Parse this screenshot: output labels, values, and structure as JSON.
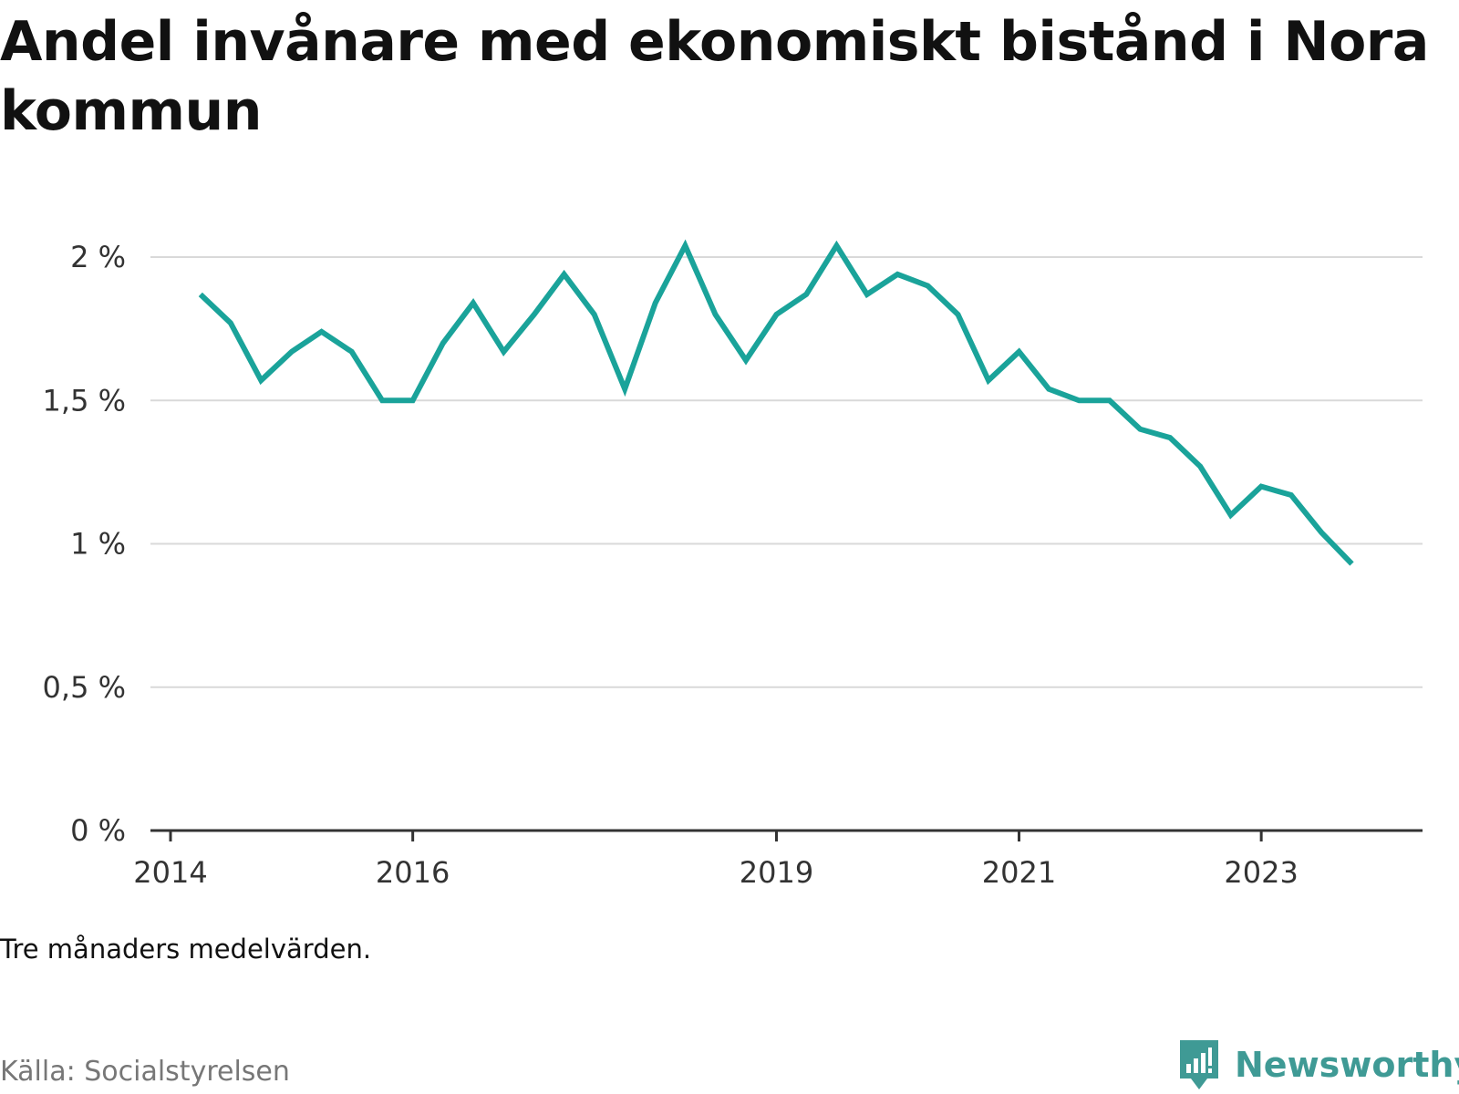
{
  "header": {
    "title": "Andel invånare med ekonomiskt bistånd i Nora kommun"
  },
  "footer": {
    "note": "Tre månaders medelvärden.",
    "source": "Källa: Socialstyrelsen",
    "brand": "Newsworthy"
  },
  "colors": {
    "line": "#1aa39a",
    "grid": "#d9d9d9",
    "axis": "#333333",
    "brand": "#3f9a95"
  },
  "chart_data": {
    "type": "line",
    "title": "Andel invånare med ekonomiskt bistånd i Nora kommun",
    "xlabel": "",
    "ylabel": "",
    "ylim": [
      0,
      2
    ],
    "xlim": [
      "2014-01-01",
      "2024-05-01"
    ],
    "y_ticks": [
      {
        "value": 0,
        "label": "0 %"
      },
      {
        "value": 0.5,
        "label": "0,5 %"
      },
      {
        "value": 1,
        "label": "1 %"
      },
      {
        "value": 1.5,
        "label": "1,5 %"
      },
      {
        "value": 2,
        "label": "2 %"
      }
    ],
    "x_ticks": [
      {
        "value": "2014-01-01",
        "label": "2014"
      },
      {
        "value": "2016-01-01",
        "label": "2016"
      },
      {
        "value": "2019-01-01",
        "label": "2019"
      },
      {
        "value": "2021-01-01",
        "label": "2021"
      },
      {
        "value": "2023-01-01",
        "label": "2023"
      }
    ],
    "grid": true,
    "legend": "none",
    "series": [
      {
        "x": [
          "2014-04-01",
          "2014-07-01",
          "2014-10-01",
          "2015-01-01",
          "2015-04-01",
          "2015-07-01",
          "2015-10-01",
          "2016-01-01",
          "2016-04-01",
          "2016-07-01",
          "2016-10-01",
          "2017-01-01",
          "2017-04-01",
          "2017-07-01",
          "2017-10-01",
          "2018-01-01",
          "2018-04-01",
          "2018-07-01",
          "2018-10-01",
          "2019-01-01",
          "2019-04-01",
          "2019-07-01",
          "2019-10-01",
          "2020-01-01",
          "2020-04-01",
          "2020-07-01",
          "2020-10-01",
          "2021-01-01",
          "2021-04-01",
          "2021-07-01",
          "2021-10-01",
          "2022-01-01",
          "2022-04-01",
          "2022-07-01",
          "2022-10-01",
          "2023-01-01",
          "2023-04-01",
          "2023-07-01",
          "2023-10-01"
        ],
        "values": [
          1.87,
          1.77,
          1.57,
          1.67,
          1.74,
          1.67,
          1.5,
          1.5,
          1.7,
          1.84,
          1.67,
          1.8,
          1.94,
          1.8,
          1.54,
          1.84,
          2.04,
          1.8,
          1.64,
          1.8,
          1.87,
          2.04,
          1.87,
          1.94,
          1.9,
          1.8,
          1.57,
          1.67,
          1.54,
          1.5,
          1.5,
          1.4,
          1.37,
          1.27,
          1.1,
          1.2,
          1.17,
          1.04,
          0.93
        ]
      }
    ]
  }
}
